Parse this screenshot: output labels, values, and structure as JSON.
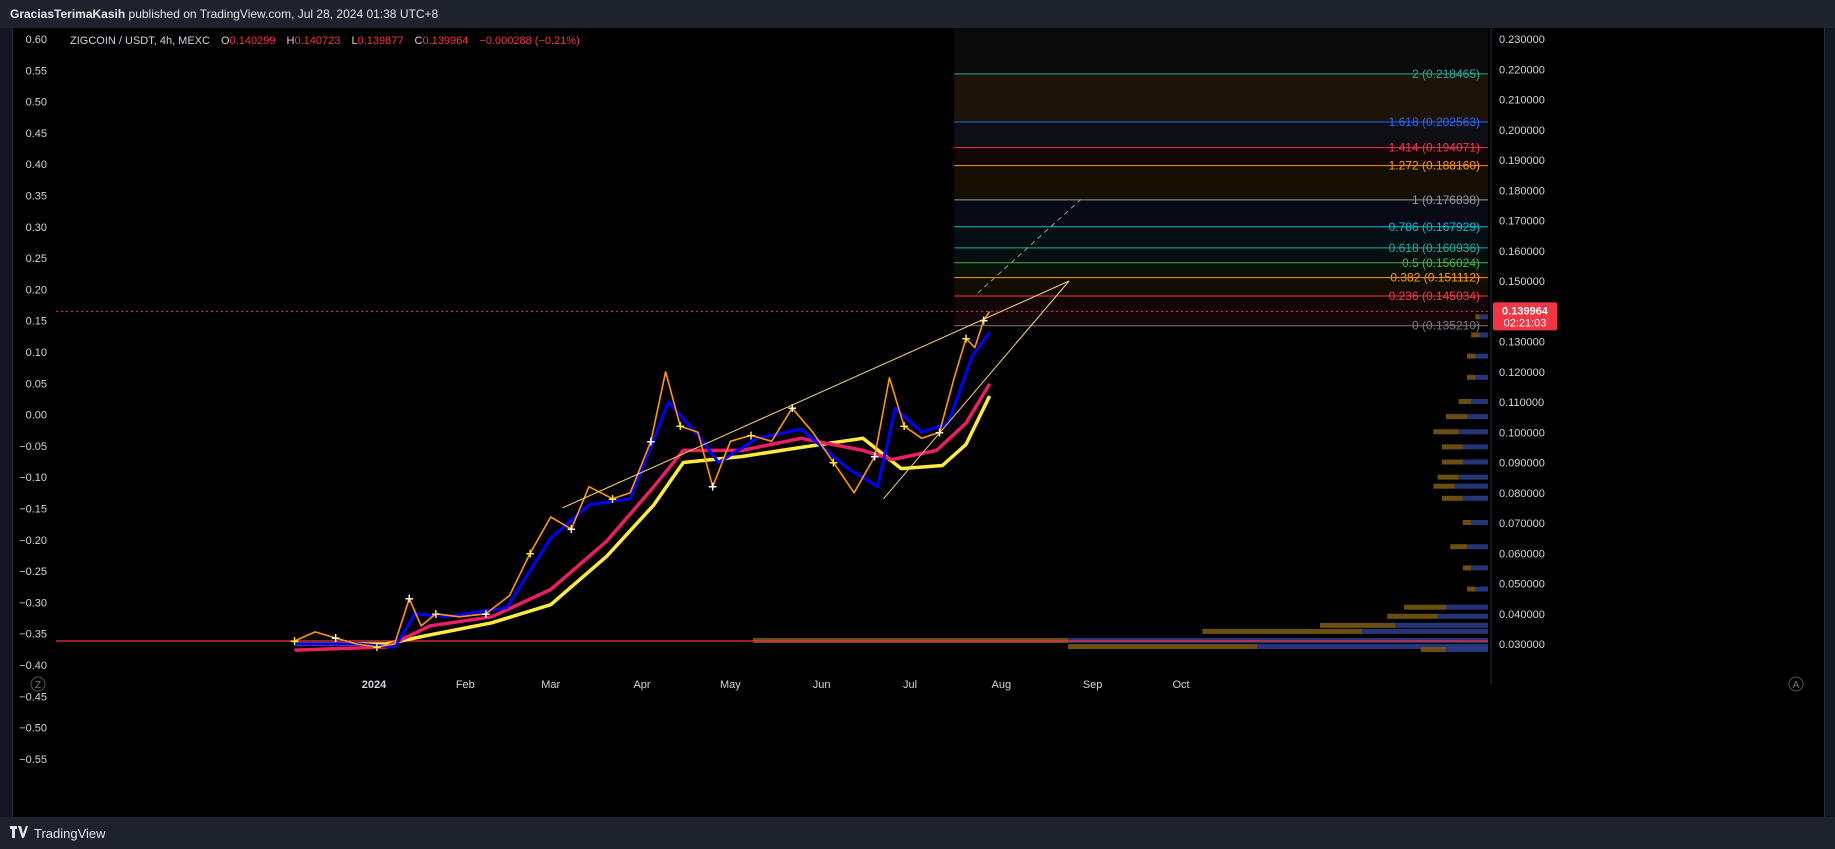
{
  "header": {
    "publisher": "GraciasTerimaKasih",
    "published_text": "published on TradingView.com, Jul 28, 2024 01:38 UTC+8"
  },
  "legend": {
    "symbol": "ZIGCOIN / USDT, 4h, MEXC",
    "open_label": "O",
    "open": "0.140299",
    "high_label": "H",
    "high": "0.140723",
    "low_label": "L",
    "low": "0.139877",
    "close_label": "C",
    "close": "0.139964",
    "change": "−0.000288 (−0.21%)"
  },
  "price_badge": {
    "price": "0.139964",
    "countdown": "02:21:03"
  },
  "footer": {
    "brand": "TradingView"
  },
  "corner_buttons": {
    "left": "Z",
    "right": "A"
  },
  "colors": {
    "background": "#000000",
    "fast_ma": "#0000ff",
    "mid_ma": "#e91e63",
    "slow_ma": "#ffeb3b",
    "trendline": "#f5d56b",
    "support_line": "#f23645",
    "volume_profile_up": "#2b3e8c",
    "volume_profile_down": "#7d5d14"
  },
  "chart_data": {
    "type": "line",
    "symbol": "ZIGCOIN / USDT",
    "timeframe": "4h",
    "exchange": "MEXC",
    "x_labels": [
      "2024",
      "Feb",
      "Mar",
      "Apr",
      "May",
      "Jun",
      "Jul",
      "Aug",
      "Sep",
      "Oct"
    ],
    "left_axis": {
      "ticks": [
        "0.60",
        "0.55",
        "0.50",
        "0.45",
        "0.40",
        "0.35",
        "0.30",
        "0.25",
        "0.20",
        "0.15",
        "0.10",
        "0.05",
        "0.00",
        "−0.05",
        "−0.10",
        "−0.15",
        "−0.20",
        "−0.25",
        "−0.30",
        "−0.35",
        "−0.40",
        "−0.45",
        "−0.50",
        "−0.55"
      ]
    },
    "right_axis": {
      "ticks": [
        "0.230000",
        "0.220000",
        "0.210000",
        "0.200000",
        "0.190000",
        "0.180000",
        "0.170000",
        "0.160000",
        "0.150000",
        "0.140000",
        "0.130000",
        "0.120000",
        "0.110000",
        "0.100000",
        "0.090000",
        "0.080000",
        "0.070000",
        "0.060000",
        "0.050000",
        "0.040000",
        "0.030000"
      ],
      "ylim": [
        0.025,
        0.232
      ]
    },
    "price_series": {
      "name": "price",
      "points": [
        {
          "date": "2023-12-05",
          "value": 0.031
        },
        {
          "date": "2023-12-12",
          "value": 0.034
        },
        {
          "date": "2023-12-19",
          "value": 0.032
        },
        {
          "date": "2023-12-26",
          "value": 0.03
        },
        {
          "date": "2024-01-02",
          "value": 0.029
        },
        {
          "date": "2024-01-08",
          "value": 0.03
        },
        {
          "date": "2024-01-13",
          "value": 0.045
        },
        {
          "date": "2024-01-17",
          "value": 0.036
        },
        {
          "date": "2024-01-22",
          "value": 0.04
        },
        {
          "date": "2024-01-30",
          "value": 0.039
        },
        {
          "date": "2024-02-08",
          "value": 0.04
        },
        {
          "date": "2024-02-16",
          "value": 0.046
        },
        {
          "date": "2024-02-23",
          "value": 0.06
        },
        {
          "date": "2024-03-01",
          "value": 0.072
        },
        {
          "date": "2024-03-08",
          "value": 0.068
        },
        {
          "date": "2024-03-14",
          "value": 0.082
        },
        {
          "date": "2024-03-22",
          "value": 0.078
        },
        {
          "date": "2024-03-28",
          "value": 0.08
        },
        {
          "date": "2024-04-04",
          "value": 0.097
        },
        {
          "date": "2024-04-09",
          "value": 0.12
        },
        {
          "date": "2024-04-14",
          "value": 0.102
        },
        {
          "date": "2024-04-20",
          "value": 0.1
        },
        {
          "date": "2024-04-25",
          "value": 0.082
        },
        {
          "date": "2024-05-01",
          "value": 0.097
        },
        {
          "date": "2024-05-08",
          "value": 0.099
        },
        {
          "date": "2024-05-15",
          "value": 0.097
        },
        {
          "date": "2024-05-22",
          "value": 0.108
        },
        {
          "date": "2024-05-29",
          "value": 0.1
        },
        {
          "date": "2024-06-05",
          "value": 0.09
        },
        {
          "date": "2024-06-12",
          "value": 0.08
        },
        {
          "date": "2024-06-19",
          "value": 0.092
        },
        {
          "date": "2024-06-24",
          "value": 0.118
        },
        {
          "date": "2024-06-29",
          "value": 0.102
        },
        {
          "date": "2024-07-05",
          "value": 0.098
        },
        {
          "date": "2024-07-11",
          "value": 0.1
        },
        {
          "date": "2024-07-16",
          "value": 0.118
        },
        {
          "date": "2024-07-20",
          "value": 0.131
        },
        {
          "date": "2024-07-23",
          "value": 0.128
        },
        {
          "date": "2024-07-26",
          "value": 0.137
        },
        {
          "date": "2024-07-28",
          "value": 0.139964
        }
      ]
    },
    "moving_averages": [
      {
        "key": "fast",
        "points": [
          {
            "date": "2023-12-05",
            "value": 0.03
          },
          {
            "date": "2023-12-26",
            "value": 0.03
          },
          {
            "date": "2024-01-08",
            "value": 0.029
          },
          {
            "date": "2024-01-15",
            "value": 0.04
          },
          {
            "date": "2024-01-25",
            "value": 0.039
          },
          {
            "date": "2024-02-15",
            "value": 0.042
          },
          {
            "date": "2024-03-01",
            "value": 0.065
          },
          {
            "date": "2024-03-14",
            "value": 0.076
          },
          {
            "date": "2024-03-28",
            "value": 0.078
          },
          {
            "date": "2024-04-10",
            "value": 0.11
          },
          {
            "date": "2024-04-20",
            "value": 0.099
          },
          {
            "date": "2024-04-27",
            "value": 0.09
          },
          {
            "date": "2024-05-10",
            "value": 0.098
          },
          {
            "date": "2024-05-25",
            "value": 0.101
          },
          {
            "date": "2024-06-10",
            "value": 0.088
          },
          {
            "date": "2024-06-20",
            "value": 0.082
          },
          {
            "date": "2024-06-26",
            "value": 0.108
          },
          {
            "date": "2024-07-05",
            "value": 0.1
          },
          {
            "date": "2024-07-14",
            "value": 0.103
          },
          {
            "date": "2024-07-22",
            "value": 0.125
          },
          {
            "date": "2024-07-28",
            "value": 0.133
          }
        ]
      },
      {
        "key": "mid",
        "points": [
          {
            "date": "2023-12-05",
            "value": 0.028
          },
          {
            "date": "2024-01-05",
            "value": 0.029
          },
          {
            "date": "2024-01-20",
            "value": 0.036
          },
          {
            "date": "2024-02-10",
            "value": 0.039
          },
          {
            "date": "2024-03-01",
            "value": 0.048
          },
          {
            "date": "2024-03-20",
            "value": 0.064
          },
          {
            "date": "2024-04-05",
            "value": 0.082
          },
          {
            "date": "2024-04-15",
            "value": 0.094
          },
          {
            "date": "2024-05-05",
            "value": 0.094
          },
          {
            "date": "2024-05-25",
            "value": 0.098
          },
          {
            "date": "2024-06-15",
            "value": 0.094
          },
          {
            "date": "2024-06-25",
            "value": 0.091
          },
          {
            "date": "2024-07-10",
            "value": 0.094
          },
          {
            "date": "2024-07-20",
            "value": 0.103
          },
          {
            "date": "2024-07-28",
            "value": 0.116
          }
        ]
      },
      {
        "key": "slow",
        "points": [
          {
            "date": "2023-12-05",
            "value": 0.03
          },
          {
            "date": "2024-01-05",
            "value": 0.03
          },
          {
            "date": "2024-01-20",
            "value": 0.033
          },
          {
            "date": "2024-02-10",
            "value": 0.037
          },
          {
            "date": "2024-03-01",
            "value": 0.043
          },
          {
            "date": "2024-03-20",
            "value": 0.059
          },
          {
            "date": "2024-04-05",
            "value": 0.076
          },
          {
            "date": "2024-04-15",
            "value": 0.09
          },
          {
            "date": "2024-05-05",
            "value": 0.092
          },
          {
            "date": "2024-05-25",
            "value": 0.095
          },
          {
            "date": "2024-06-15",
            "value": 0.098
          },
          {
            "date": "2024-06-28",
            "value": 0.088
          },
          {
            "date": "2024-07-12",
            "value": 0.089
          },
          {
            "date": "2024-07-20",
            "value": 0.096
          },
          {
            "date": "2024-07-28",
            "value": 0.112
          }
        ]
      }
    ],
    "trendlines": [
      {
        "name": "upper-trend",
        "from": {
          "date": "2024-03-05",
          "value": 0.075
        },
        "to": {
          "date": "2024-08-24",
          "value": 0.15
        }
      },
      {
        "name": "lower-trend",
        "from": {
          "date": "2024-06-22",
          "value": 0.078
        },
        "to": {
          "date": "2024-08-24",
          "value": 0.15
        }
      }
    ],
    "support_level": {
      "value": 0.031
    },
    "fibonacci": {
      "start_date": "2024-07-16",
      "levels": [
        {
          "ratio": "2",
          "price": "0.218465",
          "value": 0.218465,
          "color": "#26a69a"
        },
        {
          "ratio": "1.618",
          "price": "0.202563",
          "value": 0.202563,
          "color": "#2962ff"
        },
        {
          "ratio": "1.414",
          "price": "0.194071",
          "value": 0.194071,
          "color": "#f23645"
        },
        {
          "ratio": "1.272",
          "price": "0.188160",
          "value": 0.18816,
          "color": "#ff9800"
        },
        {
          "ratio": "1",
          "price": "0.176838",
          "value": 0.176838,
          "color": "#9598a1"
        },
        {
          "ratio": "0.786",
          "price": "0.167929",
          "value": 0.167929,
          "color": "#00bcd4"
        },
        {
          "ratio": "0.618",
          "price": "0.160936",
          "value": 0.160936,
          "color": "#26a69a"
        },
        {
          "ratio": "0.5",
          "price": "0.156024",
          "value": 0.156024,
          "color": "#4caf50"
        },
        {
          "ratio": "0.382",
          "price": "0.151112",
          "value": 0.151112,
          "color": "#ff9800"
        },
        {
          "ratio": "0.236",
          "price": "0.145034",
          "value": 0.145034,
          "color": "#f23645"
        },
        {
          "ratio": "0",
          "price": "0.135210",
          "value": 0.13521,
          "color": "#787b86"
        }
      ]
    },
    "last_price": 0.139964,
    "grid": false,
    "volume_profile": [
      {
        "price": 0.031,
        "up": 1.0,
        "down": 0.75
      },
      {
        "price": 0.029,
        "up": 0.55,
        "down": 0.45
      },
      {
        "price": 0.028,
        "up": 0.1,
        "down": 0.06
      },
      {
        "price": 0.034,
        "up": 0.3,
        "down": 0.38
      },
      {
        "price": 0.036,
        "up": 0.22,
        "down": 0.18
      },
      {
        "price": 0.039,
        "up": 0.12,
        "down": 0.12
      },
      {
        "price": 0.042,
        "up": 0.1,
        "down": 0.1
      },
      {
        "price": 0.048,
        "up": 0.03,
        "down": 0.02
      },
      {
        "price": 0.055,
        "up": 0.04,
        "down": 0.02
      },
      {
        "price": 0.062,
        "up": 0.05,
        "down": 0.04
      },
      {
        "price": 0.07,
        "up": 0.04,
        "down": 0.02
      },
      {
        "price": 0.078,
        "up": 0.06,
        "down": 0.05
      },
      {
        "price": 0.082,
        "up": 0.08,
        "down": 0.05
      },
      {
        "price": 0.085,
        "up": 0.07,
        "down": 0.05
      },
      {
        "price": 0.09,
        "up": 0.06,
        "down": 0.05
      },
      {
        "price": 0.095,
        "up": 0.06,
        "down": 0.05
      },
      {
        "price": 0.1,
        "up": 0.07,
        "down": 0.06
      },
      {
        "price": 0.105,
        "up": 0.05,
        "down": 0.05
      },
      {
        "price": 0.11,
        "up": 0.04,
        "down": 0.03
      },
      {
        "price": 0.118,
        "up": 0.03,
        "down": 0.02
      },
      {
        "price": 0.125,
        "up": 0.03,
        "down": 0.02
      },
      {
        "price": 0.132,
        "up": 0.02,
        "down": 0.02
      },
      {
        "price": 0.138,
        "up": 0.02,
        "down": 0.01
      }
    ]
  }
}
